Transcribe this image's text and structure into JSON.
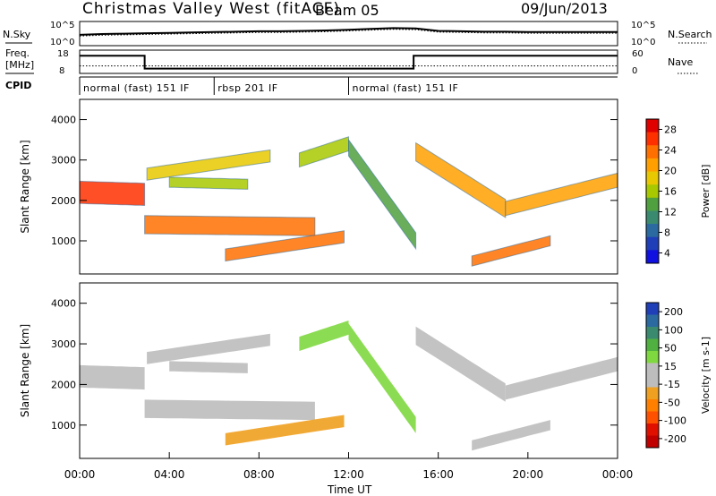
{
  "header": {
    "station": "Christmas Valley West (fitACF)",
    "beam": "Beam 05",
    "date": "09/Jun/2013"
  },
  "noise_panel": {
    "left_label": "N.Sky",
    "right_label": "N.Search",
    "left_ticks": [
      "10^5",
      "10^0"
    ],
    "right_ticks": [
      "10^5",
      "10^0"
    ]
  },
  "freq_panel": {
    "left_label_1": "Freq.",
    "left_label_2": "[MHz]",
    "right_label": "Nave",
    "left_ticks": [
      "18",
      "8"
    ],
    "right_ticks": [
      "60",
      "0"
    ]
  },
  "cpid": {
    "label": "CPID",
    "segments": [
      {
        "text": "normal (fast) 151 IF",
        "start_h": 0.0
      },
      {
        "text": "rbsp 201 IF",
        "start_h": 6.0
      },
      {
        "text": "normal (fast) 151 IF",
        "start_h": 12.0
      }
    ]
  },
  "x_axis": {
    "label": "Time UT",
    "ticks": [
      "00:00",
      "04:00",
      "08:00",
      "12:00",
      "16:00",
      "20:00",
      "00:00"
    ]
  },
  "panels": [
    {
      "id": "power",
      "ylabel": "Slant Range [km]",
      "yticks": [
        "4000",
        "3000",
        "2000",
        "1000"
      ],
      "colorbar_label": "Power [dB]",
      "colorbar_ticks": [
        "28",
        "24",
        "20",
        "16",
        "12",
        "8",
        "4"
      ],
      "colorbar_colors": [
        "#e00000",
        "#ff3000",
        "#ff7000",
        "#ffa000",
        "#e8c800",
        "#a8c800",
        "#50a040",
        "#3a8a70",
        "#2a6aa0",
        "#1f3fb8",
        "#1010e0"
      ]
    },
    {
      "id": "velocity",
      "ylabel": "Slant Range [km]",
      "yticks": [
        "4000",
        "3000",
        "2000",
        "1000"
      ],
      "colorbar_label": "Velocity [m s-1]",
      "colorbar_ticks": [
        "200",
        "100",
        "50",
        "15",
        "-15",
        "-50",
        "-100",
        "-200"
      ],
      "colorbar_colors": [
        "#1f3fb8",
        "#2a6aa0",
        "#3a8a70",
        "#50b040",
        "#80d840",
        "#bdbdbd",
        "#bdbdbd",
        "#f0a020",
        "#ff8000",
        "#ff5000",
        "#e01000",
        "#c00000"
      ]
    }
  ],
  "chart_data": {
    "type": "heatmap",
    "x_range_hours": [
      0,
      24
    ],
    "y_range_km": [
      180,
      4500
    ],
    "noise_sky_log10": [
      2.3,
      2.5,
      2.6,
      2.7,
      2.8,
      2.9,
      3.0,
      3.1,
      3.2,
      3.2,
      3.3,
      3.4,
      3.6,
      3.8,
      4.0,
      3.9,
      3.3,
      3.2,
      3.1,
      3.1,
      3.0,
      3.0,
      3.0,
      3.0,
      3.0
    ],
    "noise_search_log10": [
      2.0,
      2.2,
      2.3,
      2.4,
      2.5,
      2.6,
      2.7,
      2.8,
      2.9,
      2.9,
      3.0,
      3.1,
      3.3,
      3.5,
      3.7,
      3.6,
      3.0,
      2.9,
      2.8,
      2.8,
      2.7,
      2.7,
      2.7,
      2.7,
      2.7
    ],
    "frequency_steps": [
      {
        "start_h": 0,
        "end_h": 2.9,
        "mhz": 16.5
      },
      {
        "start_h": 2.9,
        "end_h": 14.9,
        "mhz": 10.0
      },
      {
        "start_h": 14.9,
        "end_h": 24,
        "mhz": 16.5
      }
    ],
    "nave_level": 20,
    "echo_bands": [
      {
        "name": "band-a",
        "t0": 0.0,
        "r0": 2200,
        "t1": 2.9,
        "r1": 2150,
        "width_km": 550,
        "power": 26,
        "vel": 0
      },
      {
        "name": "band-b",
        "t0": 2.9,
        "r0": 1400,
        "t1": 10.5,
        "r1": 1350,
        "width_km": 450,
        "power": 24,
        "vel": 0
      },
      {
        "name": "band-c",
        "t0": 3.0,
        "r0": 2650,
        "t1": 8.5,
        "r1": 3100,
        "width_km": 300,
        "power": 18,
        "vel": 0
      },
      {
        "name": "band-d",
        "t0": 4.0,
        "r0": 2450,
        "t1": 7.5,
        "r1": 2400,
        "width_km": 250,
        "power": 16,
        "vel": 0
      },
      {
        "name": "band-e",
        "t0": 6.5,
        "r0": 650,
        "t1": 11.8,
        "r1": 1100,
        "width_km": 300,
        "power": 24,
        "vel": -60
      },
      {
        "name": "band-f",
        "t0": 9.8,
        "r0": 3000,
        "t1": 12.0,
        "r1": 3400,
        "width_km": 350,
        "power": 14,
        "vel": 20
      },
      {
        "name": "band-g",
        "t0": 12.0,
        "r0": 3300,
        "t1": 15.0,
        "r1": 1000,
        "width_km": 400,
        "power": 12,
        "vel": 30
      },
      {
        "name": "band-h",
        "t0": 15.0,
        "r0": 3200,
        "t1": 19.0,
        "r1": 1800,
        "width_km": 450,
        "power": 20,
        "vel": 0
      },
      {
        "name": "band-i",
        "t0": 19.0,
        "r0": 1800,
        "t1": 24.0,
        "r1": 2500,
        "width_km": 350,
        "power": 22,
        "vel": 0
      },
      {
        "name": "band-j",
        "t0": 17.5,
        "r0": 500,
        "t1": 21.0,
        "r1": 1000,
        "width_km": 250,
        "power": 24,
        "vel": 10
      }
    ]
  }
}
